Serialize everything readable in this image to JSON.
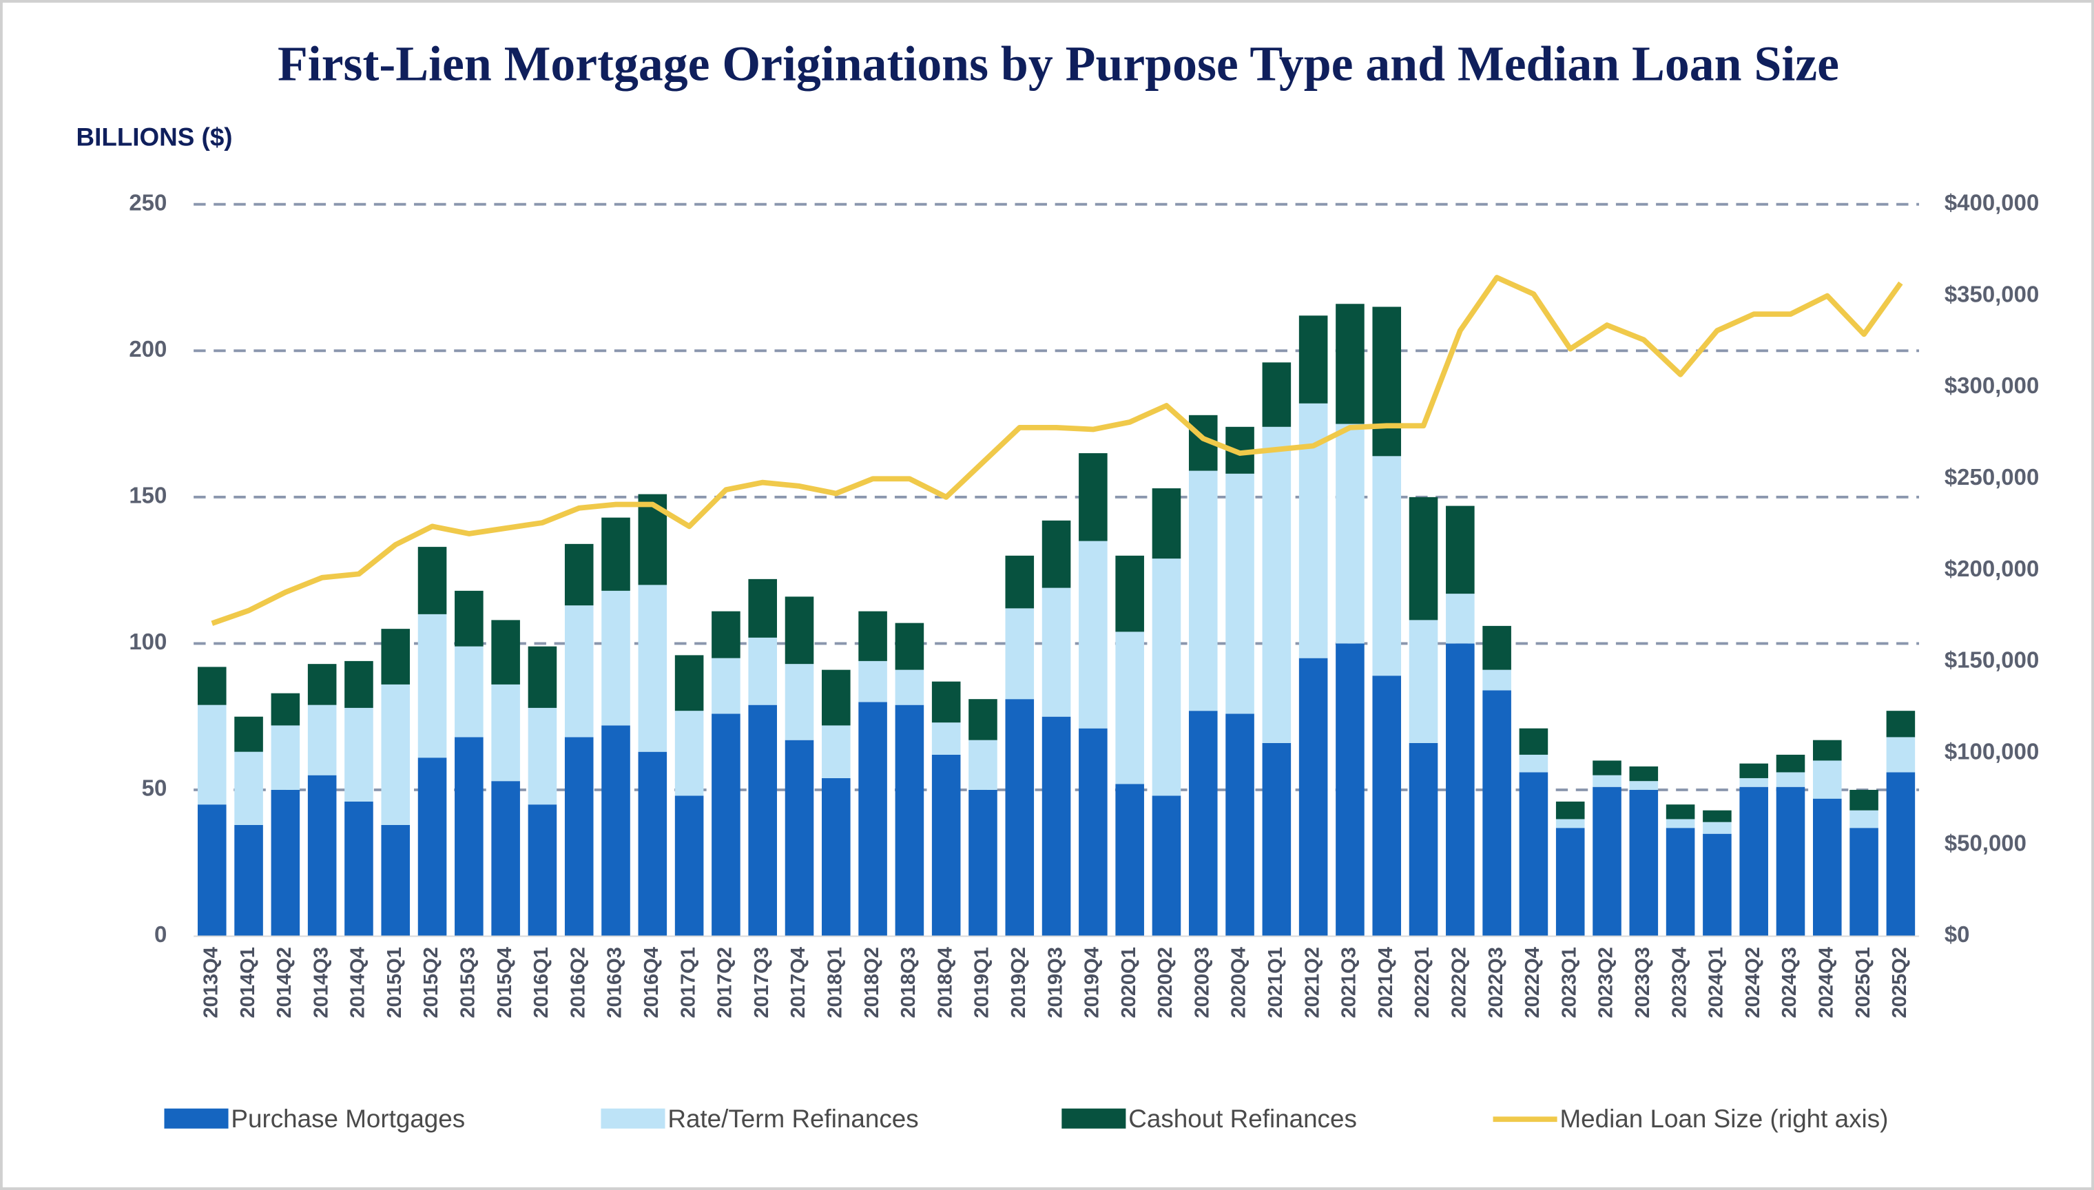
{
  "chart_data": {
    "type": "stacked-bar-line",
    "title": "First-Lien Mortgage Originations by Purpose Type and Median Loan Size",
    "y_label": "BILLIONS ($)",
    "categories": [
      "2013Q4",
      "2014Q1",
      "2014Q2",
      "2014Q3",
      "2014Q4",
      "2015Q1",
      "2015Q2",
      "2015Q3",
      "2015Q4",
      "2016Q1",
      "2016Q2",
      "2016Q3",
      "2016Q4",
      "2017Q1",
      "2017Q2",
      "2017Q3",
      "2017Q4",
      "2018Q1",
      "2018Q2",
      "2018Q3",
      "2018Q4",
      "2019Q1",
      "2019Q2",
      "2019Q3",
      "2019Q4",
      "2020Q1",
      "2020Q2",
      "2020Q3",
      "2020Q4",
      "2021Q1",
      "2021Q2",
      "2021Q3",
      "2021Q4",
      "2022Q1",
      "2022Q2",
      "2022Q3",
      "2022Q4",
      "2023Q1",
      "2023Q2",
      "2023Q3",
      "2023Q4",
      "2024Q1",
      "2024Q2",
      "2024Q3",
      "2024Q4",
      "2025Q1",
      "2025Q2"
    ],
    "series": [
      {
        "name": "Purchase Mortgages",
        "color": "#1565c0",
        "values": [
          45,
          38,
          50,
          55,
          46,
          38,
          61,
          68,
          53,
          45,
          68,
          72,
          63,
          48,
          76,
          79,
          67,
          54,
          80,
          79,
          62,
          50,
          81,
          75,
          71,
          52,
          48,
          77,
          76,
          66,
          95,
          100,
          89,
          66,
          100,
          84,
          56,
          37,
          51,
          50,
          37,
          35,
          51,
          51,
          47,
          37,
          56
        ]
      },
      {
        "name": "Rate/Term Refinances",
        "color": "#bde3f7",
        "values": [
          34,
          25,
          22,
          24,
          32,
          48,
          49,
          31,
          33,
          33,
          45,
          46,
          57,
          29,
          19,
          23,
          26,
          18,
          14,
          12,
          11,
          17,
          31,
          44,
          64,
          52,
          81,
          82,
          82,
          108,
          87,
          75,
          75,
          42,
          17,
          7,
          6,
          3,
          4,
          3,
          3,
          4,
          3,
          5,
          13,
          6,
          12
        ]
      },
      {
        "name": "Cashout Refinances",
        "color": "#07523f",
        "values": [
          13,
          12,
          11,
          14,
          16,
          19,
          23,
          19,
          22,
          21,
          21,
          25,
          31,
          19,
          16,
          20,
          23,
          19,
          17,
          16,
          14,
          14,
          18,
          23,
          30,
          26,
          24,
          19,
          16,
          22,
          30,
          41,
          51,
          42,
          30,
          15,
          9,
          6,
          5,
          5,
          5,
          4,
          5,
          6,
          7,
          7,
          9
        ]
      },
      {
        "name": "Median Loan Size (right axis)",
        "color": "#f0c94a",
        "axis": "y2",
        "values": [
          171000,
          178000,
          188000,
          196000,
          198000,
          214000,
          224000,
          220000,
          223000,
          226000,
          234000,
          236000,
          236000,
          224000,
          244000,
          248000,
          246000,
          242000,
          250000,
          250000,
          240000,
          259000,
          278000,
          278000,
          277000,
          281000,
          290000,
          272000,
          264000,
          266000,
          268000,
          278000,
          279000,
          279000,
          331000,
          360000,
          351000,
          321000,
          334000,
          326000,
          307000,
          331000,
          340000,
          340000,
          350000,
          329000,
          357000
        ]
      }
    ],
    "ylim": [
      0,
      250
    ],
    "yticks": [
      0,
      50,
      100,
      150,
      200,
      250
    ],
    "y2lim": [
      0,
      400000
    ],
    "y2ticks": [
      {
        "value": 0,
        "label": "$0"
      },
      {
        "value": 50000,
        "label": "$50,000"
      },
      {
        "value": 100000,
        "label": "$100,000"
      },
      {
        "value": 150000,
        "label": "$150,000"
      },
      {
        "value": 200000,
        "label": "$200,000"
      },
      {
        "value": 250000,
        "label": "$250,000"
      },
      {
        "value": 300000,
        "label": "$300,000"
      },
      {
        "value": 350000,
        "label": "$350,000"
      },
      {
        "value": 400000,
        "label": "$400,000"
      }
    ],
    "grid": true,
    "legend": "bottom"
  }
}
